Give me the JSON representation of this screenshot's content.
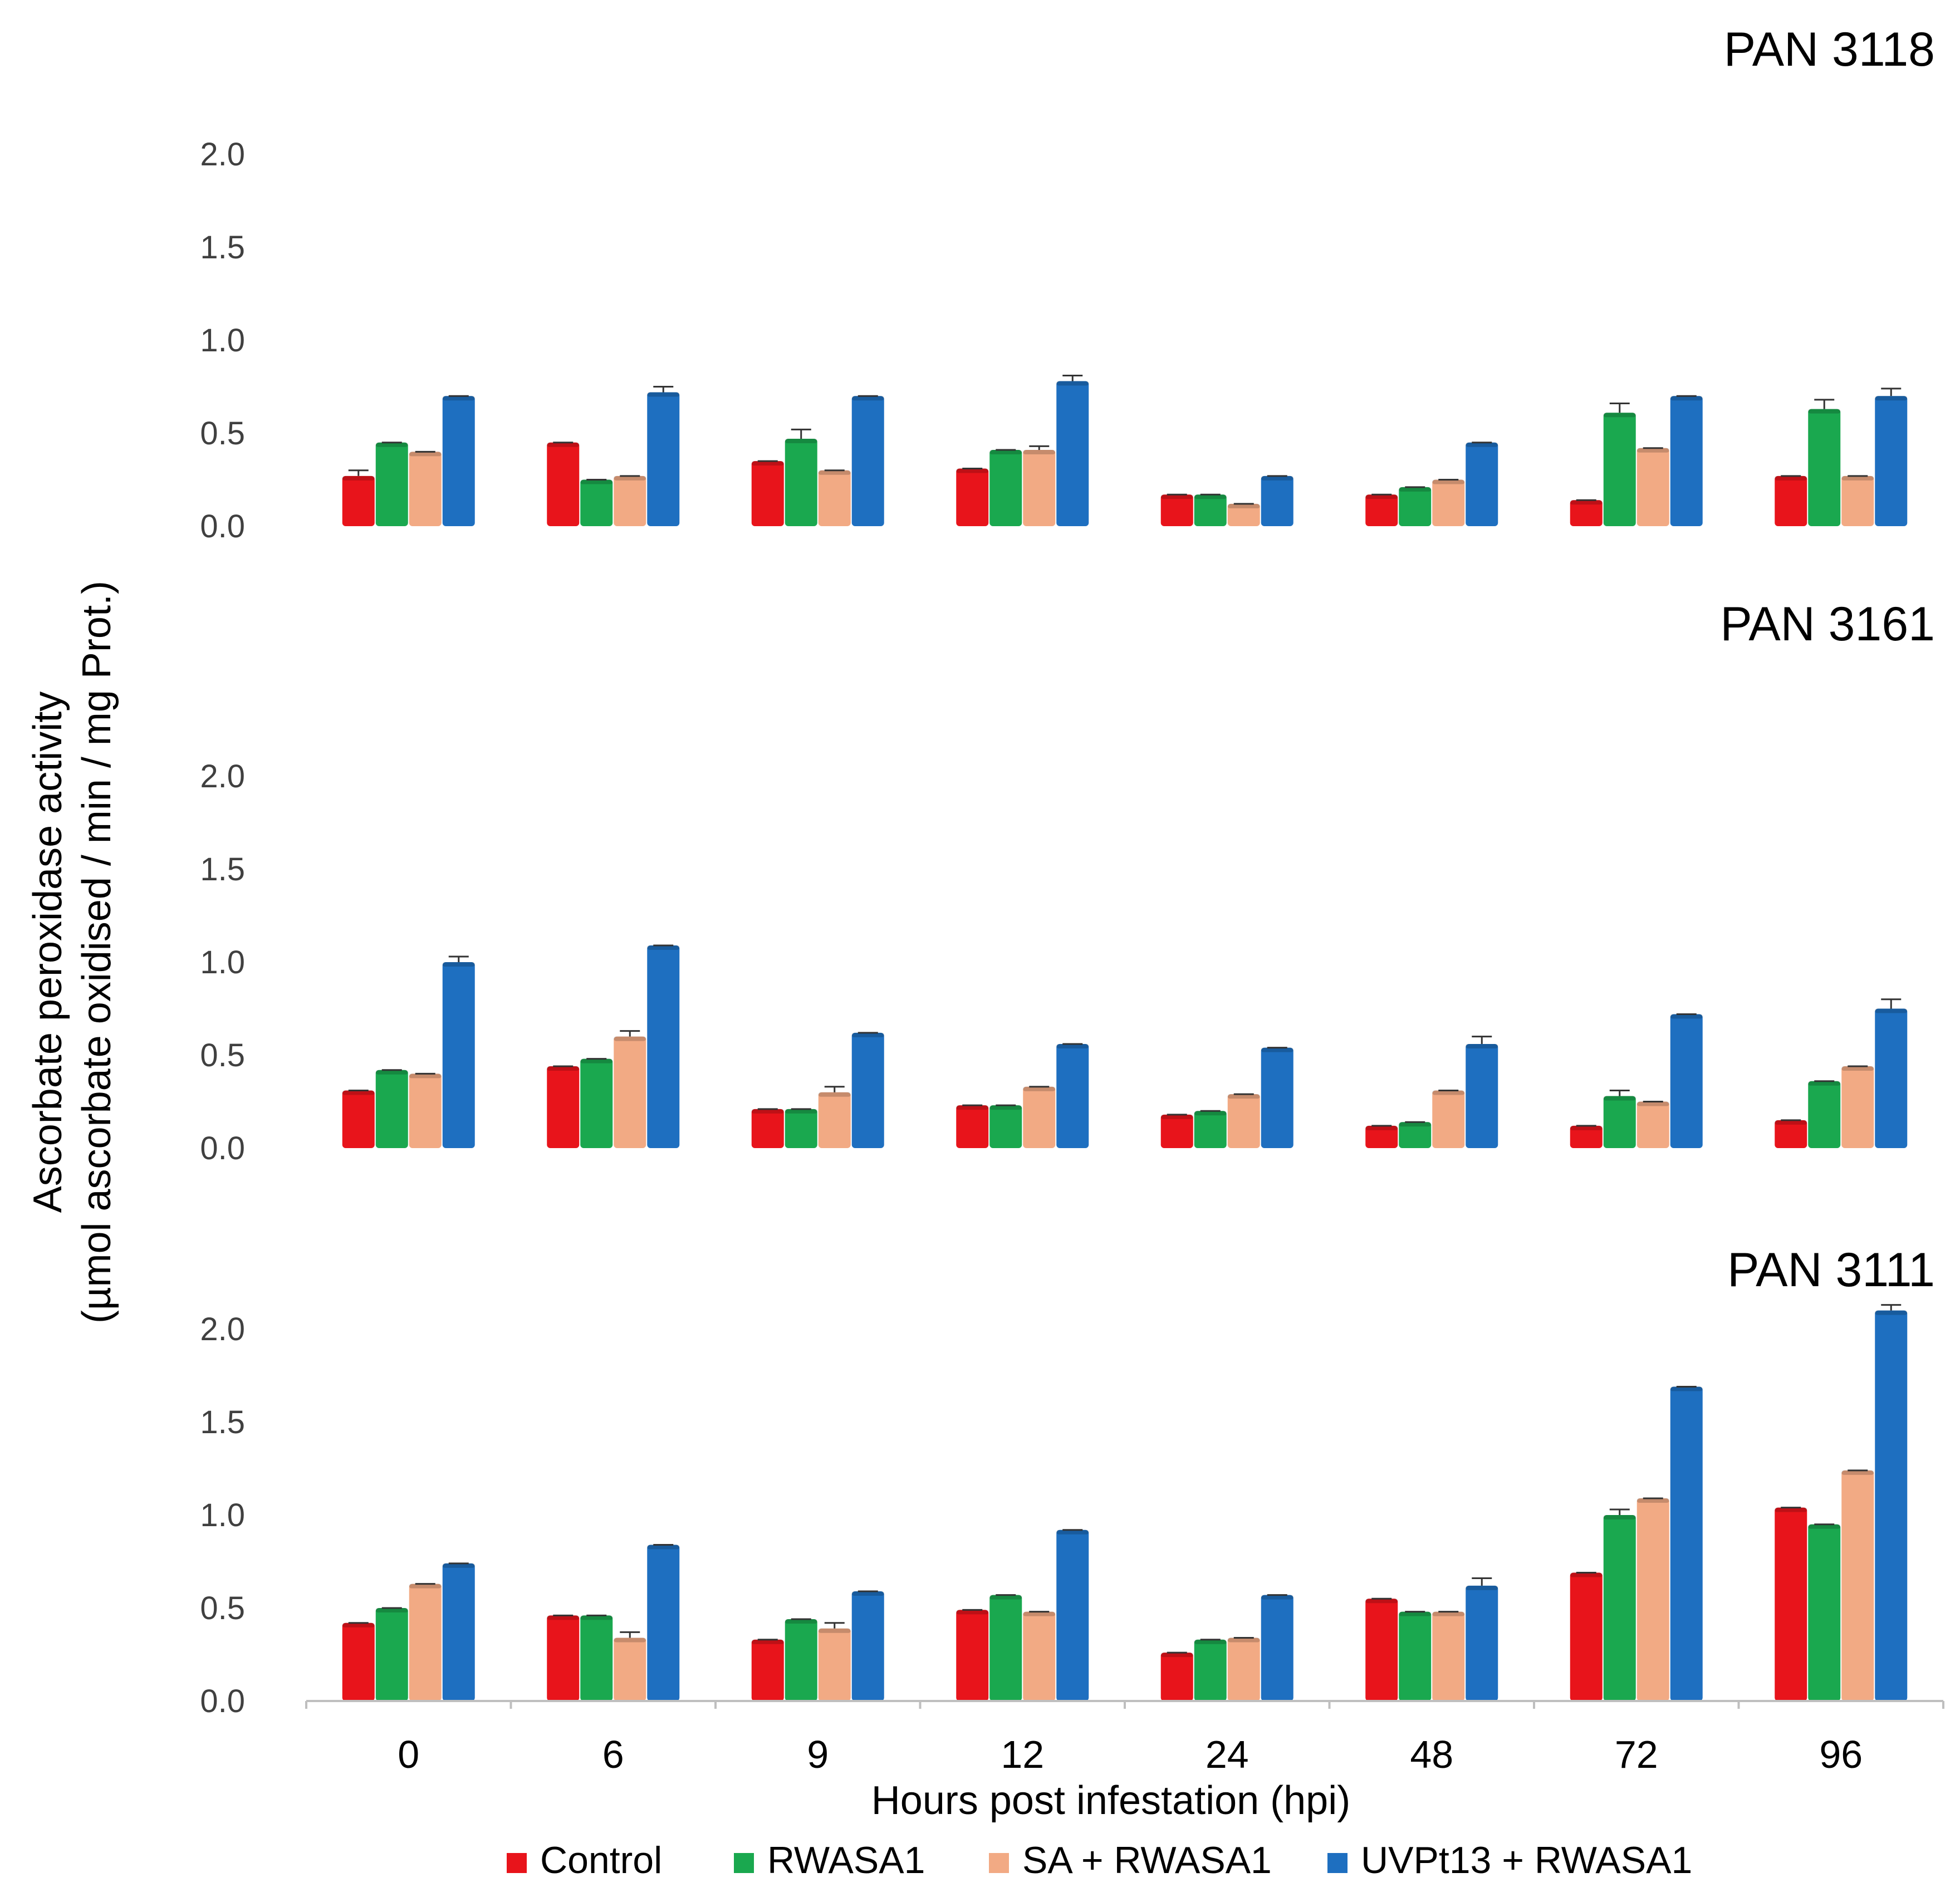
{
  "chart_data": {
    "type": "bar",
    "ylabel_line1": "Ascorbate peroxidase activity",
    "ylabel_line2": "(µmol ascorbate oxidised / min / mg Prot.)",
    "xlabel": "Hours post infestation (hpi)",
    "categories": [
      "0",
      "6",
      "9",
      "12",
      "24",
      "48",
      "72",
      "96"
    ],
    "ylim": [
      0,
      2.0
    ],
    "yticks": [
      "0.0",
      "0.5",
      "1.0",
      "1.5",
      "2.0"
    ],
    "series_colors": {
      "Control": "#e8141b",
      "RWASA1": "#1aa84f",
      "SA + RWASA1": "#f2aa84",
      "UVPt13 + RWASA1": "#1e6fc0"
    },
    "legend": [
      "Control",
      "RWASA1",
      "SA + RWASA1",
      "UVPt13 + RWASA1"
    ],
    "panels": [
      {
        "title": "PAN 3118",
        "series": [
          {
            "name": "Control",
            "values": [
              0.27,
              0.45,
              0.35,
              0.31,
              0.17,
              0.17,
              0.14,
              0.27
            ],
            "errors": [
              0.03,
              0,
              0,
              0,
              0,
              0,
              0,
              0
            ]
          },
          {
            "name": "RWASA1",
            "values": [
              0.45,
              0.25,
              0.47,
              0.41,
              0.17,
              0.21,
              0.61,
              0.63
            ],
            "errors": [
              0,
              0,
              0.05,
              0,
              0,
              0,
              0.05,
              0.05
            ]
          },
          {
            "name": "SA + RWASA1",
            "values": [
              0.4,
              0.27,
              0.3,
              0.41,
              0.12,
              0.25,
              0.42,
              0.27
            ],
            "errors": [
              0,
              0,
              0,
              0.02,
              0,
              0,
              0,
              0
            ]
          },
          {
            "name": "UVPt13 + RWASA1",
            "values": [
              0.7,
              0.72,
              0.7,
              0.78,
              0.27,
              0.45,
              0.7,
              0.7
            ],
            "errors": [
              0,
              0.03,
              0,
              0.03,
              0,
              0,
              0,
              0.04
            ]
          }
        ]
      },
      {
        "title": "PAN 3161",
        "series": [
          {
            "name": "Control",
            "values": [
              0.31,
              0.44,
              0.21,
              0.23,
              0.18,
              0.12,
              0.12,
              0.15
            ],
            "errors": [
              0,
              0,
              0,
              0,
              0,
              0,
              0,
              0
            ]
          },
          {
            "name": "RWASA1",
            "values": [
              0.42,
              0.48,
              0.21,
              0.23,
              0.2,
              0.14,
              0.28,
              0.36
            ],
            "errors": [
              0,
              0,
              0,
              0,
              0,
              0,
              0.03,
              0
            ]
          },
          {
            "name": "SA + RWASA1",
            "values": [
              0.4,
              0.6,
              0.3,
              0.33,
              0.29,
              0.31,
              0.25,
              0.44
            ],
            "errors": [
              0,
              0.03,
              0.03,
              0,
              0,
              0,
              0,
              0
            ]
          },
          {
            "name": "UVPt13 + RWASA1",
            "values": [
              1.0,
              1.09,
              0.62,
              0.56,
              0.54,
              0.56,
              0.72,
              0.75
            ],
            "errors": [
              0.03,
              0,
              0,
              0,
              0,
              0.04,
              0,
              0.05
            ]
          }
        ]
      },
      {
        "title": "PAN 3111",
        "series": [
          {
            "name": "Control",
            "values": [
              0.42,
              0.46,
              0.33,
              0.49,
              0.26,
              0.55,
              0.69,
              1.04
            ],
            "errors": [
              0,
              0,
              0,
              0,
              0,
              0,
              0,
              0
            ]
          },
          {
            "name": "RWASA1",
            "values": [
              0.5,
              0.46,
              0.44,
              0.57,
              0.33,
              0.48,
              1.0,
              0.95
            ],
            "errors": [
              0,
              0,
              0,
              0,
              0,
              0,
              0.03,
              0
            ]
          },
          {
            "name": "SA + RWASA1",
            "values": [
              0.63,
              0.34,
              0.39,
              0.48,
              0.34,
              0.48,
              1.09,
              1.24
            ],
            "errors": [
              0,
              0.03,
              0.03,
              0,
              0,
              0,
              0,
              0
            ]
          },
          {
            "name": "UVPt13 + RWASA1",
            "values": [
              0.74,
              0.84,
              0.59,
              0.92,
              0.57,
              0.62,
              1.69,
              2.1
            ],
            "errors": [
              0,
              0,
              0,
              0,
              0,
              0.04,
              0,
              0.03
            ]
          }
        ]
      }
    ]
  }
}
